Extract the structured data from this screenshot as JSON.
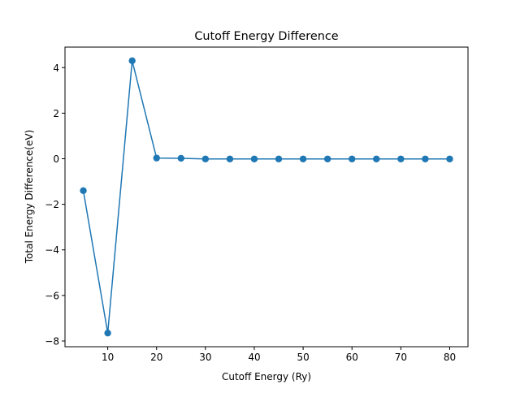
{
  "chart_data": {
    "type": "line",
    "title": "Cutoff Energy Difference",
    "xlabel": "Cutoff Energy (Ry)",
    "ylabel": "Total Energy Difference(eV)",
    "x": [
      5,
      10,
      15,
      20,
      25,
      30,
      35,
      40,
      45,
      50,
      55,
      60,
      65,
      70,
      75,
      80
    ],
    "series": [
      {
        "values": [
          -1.4,
          -7.65,
          4.3,
          0.03,
          0.02,
          -0.01,
          -0.01,
          -0.01,
          -0.01,
          -0.01,
          -0.01,
          -0.01,
          -0.01,
          -0.01,
          -0.01,
          -0.01
        ]
      }
    ],
    "xlim": [
      1.25,
      83.75
    ],
    "ylim": [
      -8.25,
      4.9
    ],
    "xticks": [
      10,
      20,
      30,
      40,
      50,
      60,
      70,
      80
    ],
    "xtick_labels": [
      "10",
      "20",
      "30",
      "40",
      "50",
      "60",
      "70",
      "80"
    ],
    "yticks": [
      -8,
      -6,
      -4,
      -2,
      0,
      2,
      4
    ],
    "ytick_labels": [
      "−8",
      "−6",
      "−4",
      "−2",
      "0",
      "2",
      "4"
    ],
    "grid": false,
    "legend": false,
    "colors": {
      "series": "#1f77b4",
      "axes": "#000000"
    }
  }
}
